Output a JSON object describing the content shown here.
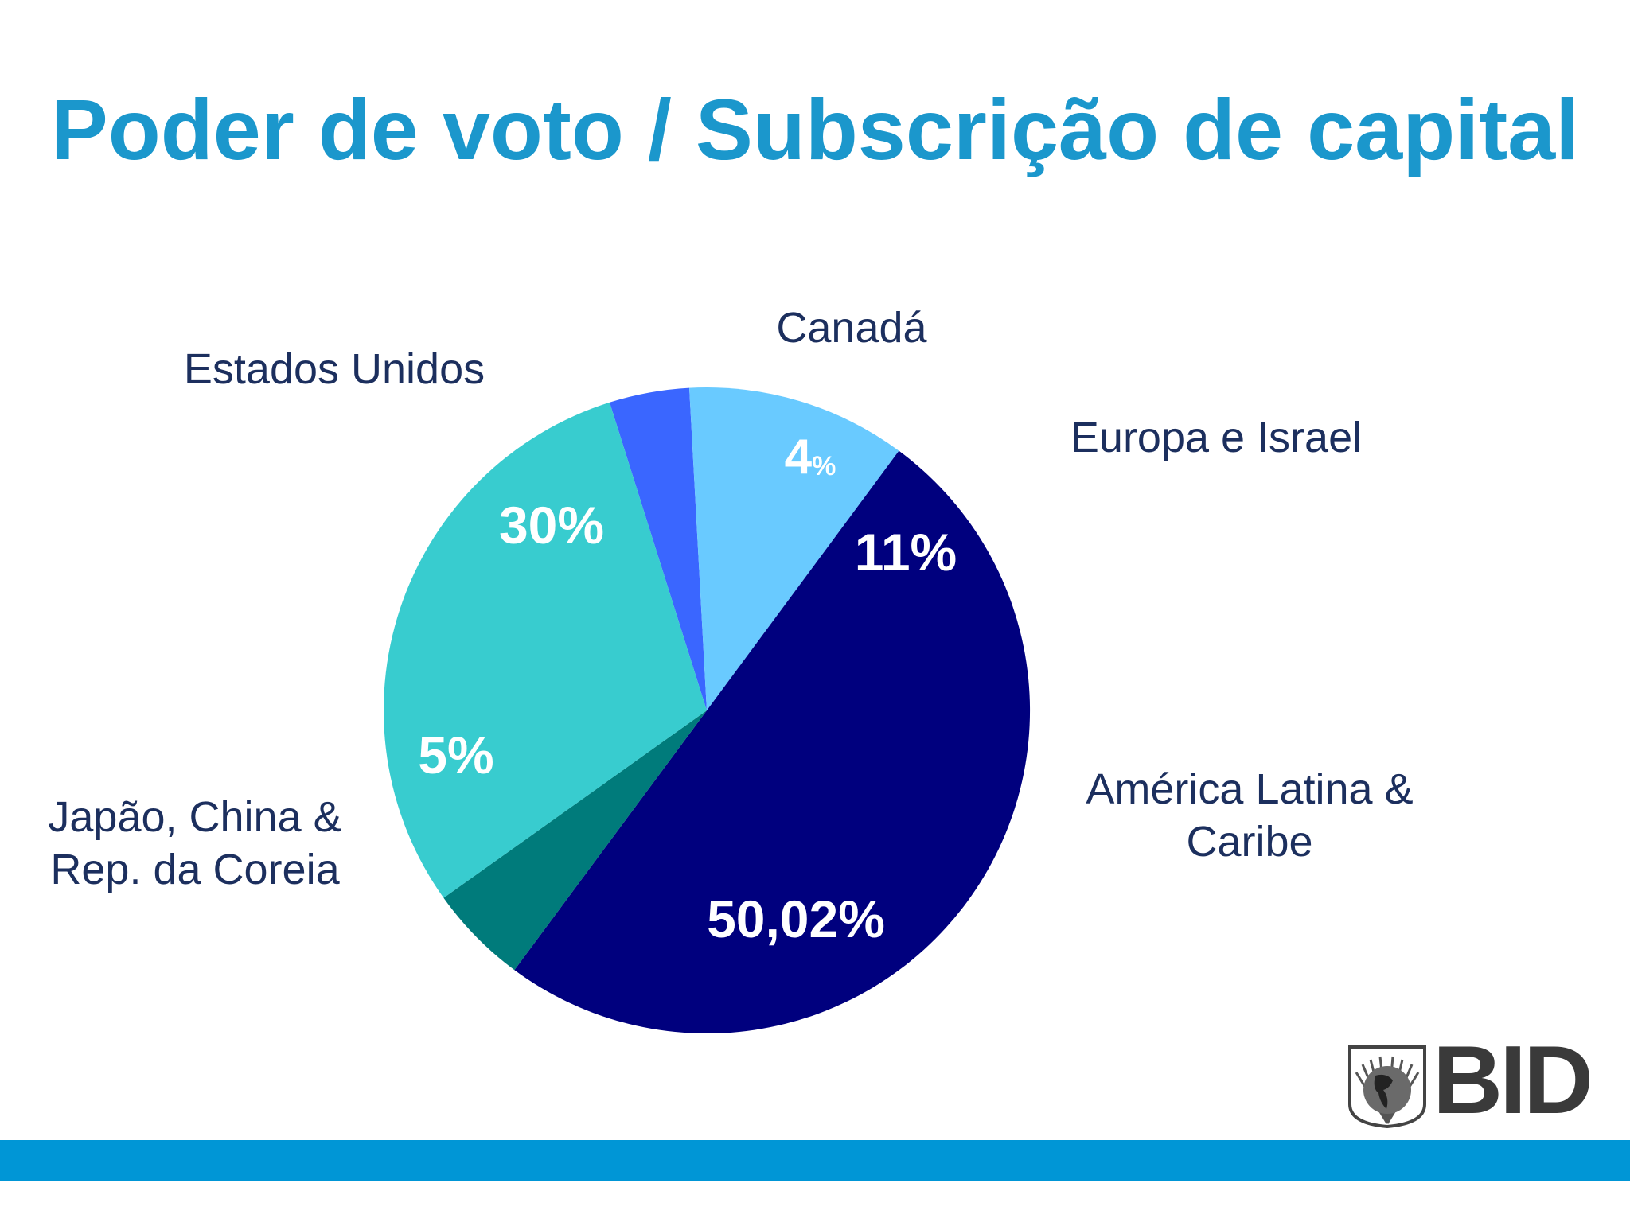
{
  "title": "Poder de voto / Subscrição de capital",
  "logo_text": "BID",
  "colors": {
    "title": "#1b97cc",
    "footer_bar": "#0096d6",
    "label_text": "#1c2f5e"
  },
  "chart_data": {
    "type": "pie",
    "slices": [
      {
        "category": "Canadá",
        "value": 4,
        "label": "4",
        "label_unit": "%",
        "color": "#3a66ff"
      },
      {
        "category": "Europa e Israel",
        "value": 11,
        "label": "11%",
        "color": "#69caff"
      },
      {
        "category": "América Latina & Caribe",
        "category_lines": [
          "América Latina &",
          "Caribe"
        ],
        "value": 50.02,
        "label": "50,02%",
        "color": "#00007e"
      },
      {
        "category": "Japão, China & Rep. da Coreia",
        "category_lines": [
          "Japão, China &",
          "Rep. da Coreia"
        ],
        "value": 5,
        "label": "5%",
        "color": "#007b7b"
      },
      {
        "category": "Estados Unidos",
        "value": 30,
        "label": "30%",
        "color": "#38cccf"
      }
    ],
    "legend": "none"
  }
}
